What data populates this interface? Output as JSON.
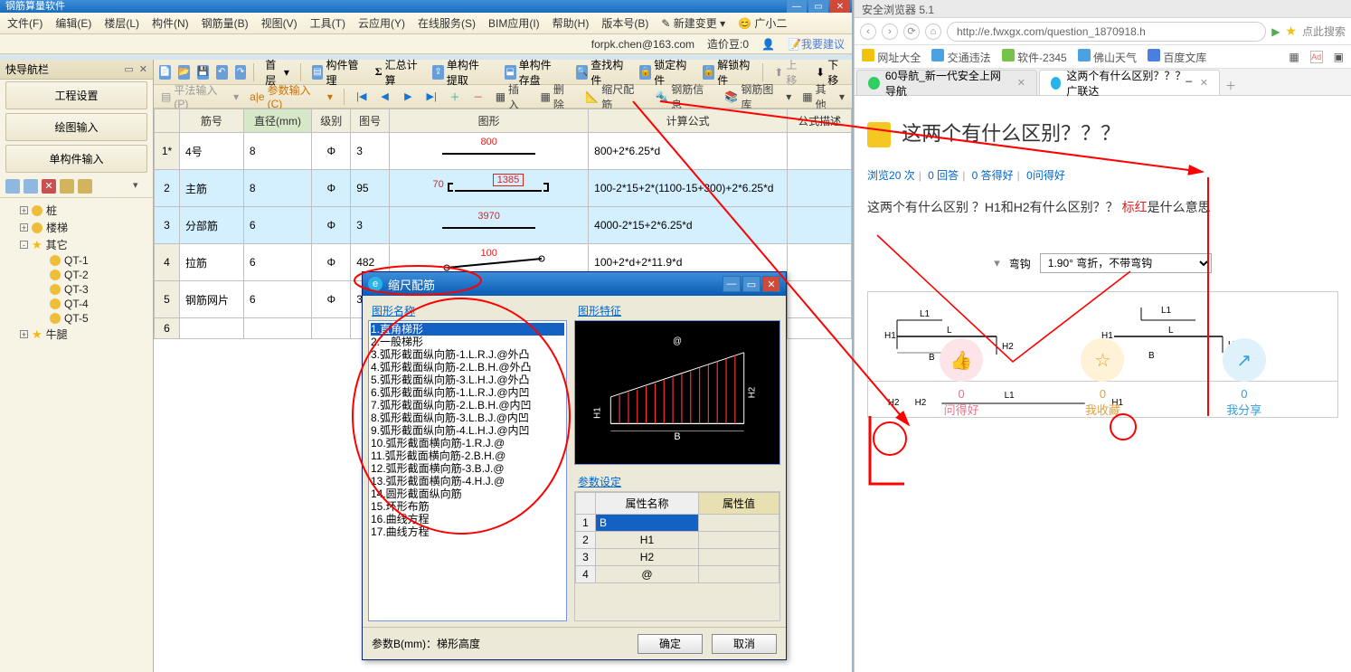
{
  "title_fragment": "钢筋算量软件",
  "menu": [
    "文件(F)",
    "编辑(E)",
    "楼层(L)",
    "构件(N)",
    "钢筋量(B)",
    "视图(V)",
    "工具(T)",
    "云应用(Y)",
    "在线服务(S)",
    "BIM应用(I)",
    "帮助(H)",
    "版本号(B)"
  ],
  "menu_right": {
    "new_change": "新建变更",
    "proxy": "广小二"
  },
  "status_right": {
    "email": "forpk.chen@163.com",
    "credit_label": "造价豆:",
    "credit": "0",
    "feedback": "我要建议"
  },
  "toolbar1": {
    "floor": "首层",
    "items": [
      "构件管理",
      "汇总计算",
      "单构件提取",
      "单构件存盘",
      "查找构件",
      "锁定构件",
      "解锁构件",
      "上移",
      "下移"
    ]
  },
  "nav": {
    "title": "快导航栏",
    "buttons": [
      "工程设置",
      "绘图输入",
      "单构件输入"
    ],
    "tree": [
      {
        "lvl": 0,
        "exp": "+",
        "icon": "gear",
        "label": "桩"
      },
      {
        "lvl": 0,
        "exp": "+",
        "icon": "gear",
        "label": "楼梯"
      },
      {
        "lvl": 0,
        "exp": "-",
        "icon": "star",
        "label": "其它"
      },
      {
        "lvl": 1,
        "icon": "gear",
        "label": "QT-1"
      },
      {
        "lvl": 1,
        "icon": "gear",
        "label": "QT-2"
      },
      {
        "lvl": 1,
        "icon": "gear",
        "label": "QT-3"
      },
      {
        "lvl": 1,
        "icon": "gear",
        "label": "QT-4"
      },
      {
        "lvl": 1,
        "icon": "gear",
        "label": "QT-5"
      },
      {
        "lvl": 0,
        "exp": "+",
        "icon": "star",
        "label": "牛腿"
      }
    ]
  },
  "formula_bar": {
    "pingfa": "平法输入(P)",
    "param": "参数输入(C)",
    "insert": "插入",
    "delete": "删除",
    "ssj": "缩尺配筋",
    "gjxx": "钢筋信息",
    "gjtk": "钢筋图库",
    "other": "其他"
  },
  "grid": {
    "columns": [
      "",
      "筋号",
      "直径(mm)",
      "级别",
      "图号",
      "图形",
      "计算公式",
      "公式描述"
    ],
    "hl_col_index": 2,
    "rows": [
      {
        "idx": "1*",
        "name": "4号",
        "dia": "8",
        "grade": "Φ",
        "shape_no": "3",
        "shape": {
          "type": "bar",
          "top": "800"
        },
        "formula": "800+2*6.25*d",
        "desc": "",
        "sel": false
      },
      {
        "idx": "2",
        "name": "主筋",
        "dia": "8",
        "grade": "Φ",
        "shape_no": "95",
        "shape": {
          "type": "hookbar",
          "left": "70",
          "top": "1385"
        },
        "formula": "100-2*15+2*(1100-15+300)+2*6.25*d",
        "desc": "",
        "sel": true
      },
      {
        "idx": "3",
        "name": "分部筋",
        "dia": "6",
        "grade": "Φ",
        "shape_no": "3",
        "shape": {
          "type": "bar",
          "top": "3970"
        },
        "formula": "4000-2*15+2*6.25*d",
        "desc": "",
        "sel": true
      },
      {
        "idx": "4",
        "name": "拉筋",
        "dia": "6",
        "grade": "Φ",
        "shape_no": "482",
        "shape": {
          "type": "tilt",
          "top": "100"
        },
        "formula": "100+2*d+2*11.9*d",
        "desc": "",
        "sel": false
      },
      {
        "idx": "5",
        "name": "钢筋网片",
        "dia": "6",
        "grade": "Φ",
        "shape_no": "3",
        "shape": {
          "type": "bar",
          "top": "401"
        },
        "formula": "401",
        "desc": "",
        "sel": false
      },
      {
        "idx": "6",
        "name": "",
        "dia": "",
        "grade": "",
        "shape_no": "",
        "shape": null,
        "formula": "",
        "desc": "",
        "sel": false
      }
    ]
  },
  "dialog": {
    "title": "缩尺配筋",
    "left_label": "图形名称",
    "right_label": "图形特征",
    "param_label": "参数设定",
    "list": [
      "1.直角梯形",
      "2.一般梯形",
      "3.弧形截面纵向筋-1.L.R.J.@外凸",
      "4.弧形截面纵向筋-2.L.B.H.@外凸",
      "5.弧形截面纵向筋-3.L.H.J.@外凸",
      "6.弧形截面纵向筋-1.L.R.J.@内凹",
      "7.弧形截面纵向筋-2.L.B.H.@内凹",
      "8.弧形截面纵向筋-3.L.B.J.@内凹",
      "9.弧形截面纵向筋-4.L.H.J.@内凹",
      "10.弧形截面横向筋-1.R.J.@",
      "11.弧形截面横向筋-2.B.H.@",
      "12.弧形截面横向筋-3.B.J.@",
      "13.弧形截面横向筋-4.H.J.@",
      "14.圆形截面纵向筋",
      "15.环形布筋",
      "16.曲线方程",
      "17.曲线方程"
    ],
    "list_sel": 0,
    "preview_labels": {
      "B": "B",
      "H1": "H1",
      "H2": "H2",
      "at": "@"
    },
    "param_cols": [
      "",
      "属性名称",
      "属性值"
    ],
    "param_rows": [
      {
        "i": "1",
        "name": "B",
        "val": "",
        "sel": true
      },
      {
        "i": "2",
        "name": "H1",
        "val": ""
      },
      {
        "i": "3",
        "name": "H2",
        "val": ""
      },
      {
        "i": "4",
        "name": "@",
        "val": ""
      }
    ],
    "footer_hint": "参数B(mm)：梯形高度",
    "ok": "确定",
    "cancel": "取消"
  },
  "browser": {
    "window_title_fragment": "安全浏览器 5.1",
    "url": "http://e.fwxgx.com/question_1870918.h",
    "search_placeholder": "点此搜索",
    "bookmarks": [
      {
        "label": "网址大全",
        "color": "#f3c20a"
      },
      {
        "label": "交通违法",
        "color": "#4aa3e0"
      },
      {
        "label": "软件-2345",
        "color": "#76c24a"
      },
      {
        "label": "佛山天气",
        "color": "#4aa3e0"
      },
      {
        "label": "百度文库",
        "color": "#4a7fe0"
      }
    ],
    "tabs": [
      {
        "label": "60导航_新一代安全上网导航",
        "active": false
      },
      {
        "label": "这两个有什么区别？？？_广联达",
        "active": true
      }
    ],
    "question": {
      "title": "这两个有什么区别？？？",
      "meta": {
        "views_label": "浏览",
        "views": "20 次",
        "answers": "0 回答",
        "good": "0 答得好",
        "askgood": "0问得好"
      },
      "desc_parts": [
        "这两个有什么区别  ？H1和H2有什么区别？？",
        "标红",
        "是什么意思"
      ],
      "bend_label": "弯钩",
      "bend_option": "1.90° 弯折，不带弯钩"
    },
    "footer": [
      {
        "icon": "👍",
        "count": "0",
        "label": "问得好",
        "cls": "1"
      },
      {
        "icon": "☆",
        "count": "0",
        "label": "我收藏",
        "cls": "2"
      },
      {
        "icon": "↗",
        "count": "0",
        "label": "我分享",
        "cls": "3"
      }
    ]
  },
  "colors": {
    "annot": "#ff0000",
    "sel_blue": "#1461c4",
    "grid_sel": "#d4f0ff"
  }
}
